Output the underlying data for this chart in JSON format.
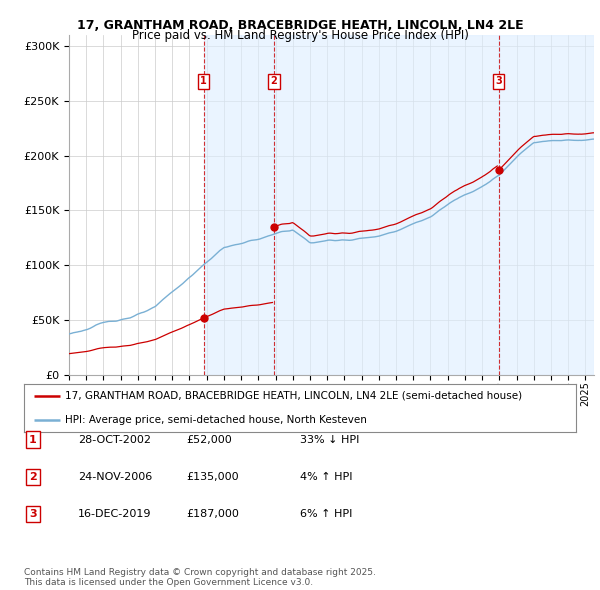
{
  "title_line1": "17, GRANTHAM ROAD, BRACEBRIDGE HEATH, LINCOLN, LN4 2LE",
  "title_line2": "Price paid vs. HM Land Registry's House Price Index (HPI)",
  "ylim": [
    0,
    310000
  ],
  "yticks": [
    0,
    50000,
    100000,
    150000,
    200000,
    250000,
    300000
  ],
  "ytick_labels": [
    "£0",
    "£50K",
    "£100K",
    "£150K",
    "£200K",
    "£250K",
    "£300K"
  ],
  "sale_dates": [
    2002.82,
    2006.9,
    2019.96
  ],
  "sale_prices": [
    52000,
    135000,
    187000
  ],
  "sale_labels": [
    "1",
    "2",
    "3"
  ],
  "red_line_color": "#cc0000",
  "blue_line_color": "#7ab0d4",
  "blue_fill_color": "#c8dff0",
  "ownership_fill_color": "#ddeeff",
  "grid_color": "#cccccc",
  "background_color": "#ffffff",
  "legend_label_red": "17, GRANTHAM ROAD, BRACEBRIDGE HEATH, LINCOLN, LN4 2LE (semi-detached house)",
  "legend_label_blue": "HPI: Average price, semi-detached house, North Kesteven",
  "table_entries": [
    {
      "num": "1",
      "date": "28-OCT-2002",
      "price": "£52,000",
      "change": "33% ↓ HPI"
    },
    {
      "num": "2",
      "date": "24-NOV-2006",
      "price": "£135,000",
      "change": "4% ↑ HPI"
    },
    {
      "num": "3",
      "date": "16-DEC-2019",
      "price": "£187,000",
      "change": "6% ↑ HPI"
    }
  ],
  "footnote": "Contains HM Land Registry data © Crown copyright and database right 2025.\nThis data is licensed under the Open Government Licence v3.0.",
  "xmin": 1995,
  "xmax": 2025.5
}
